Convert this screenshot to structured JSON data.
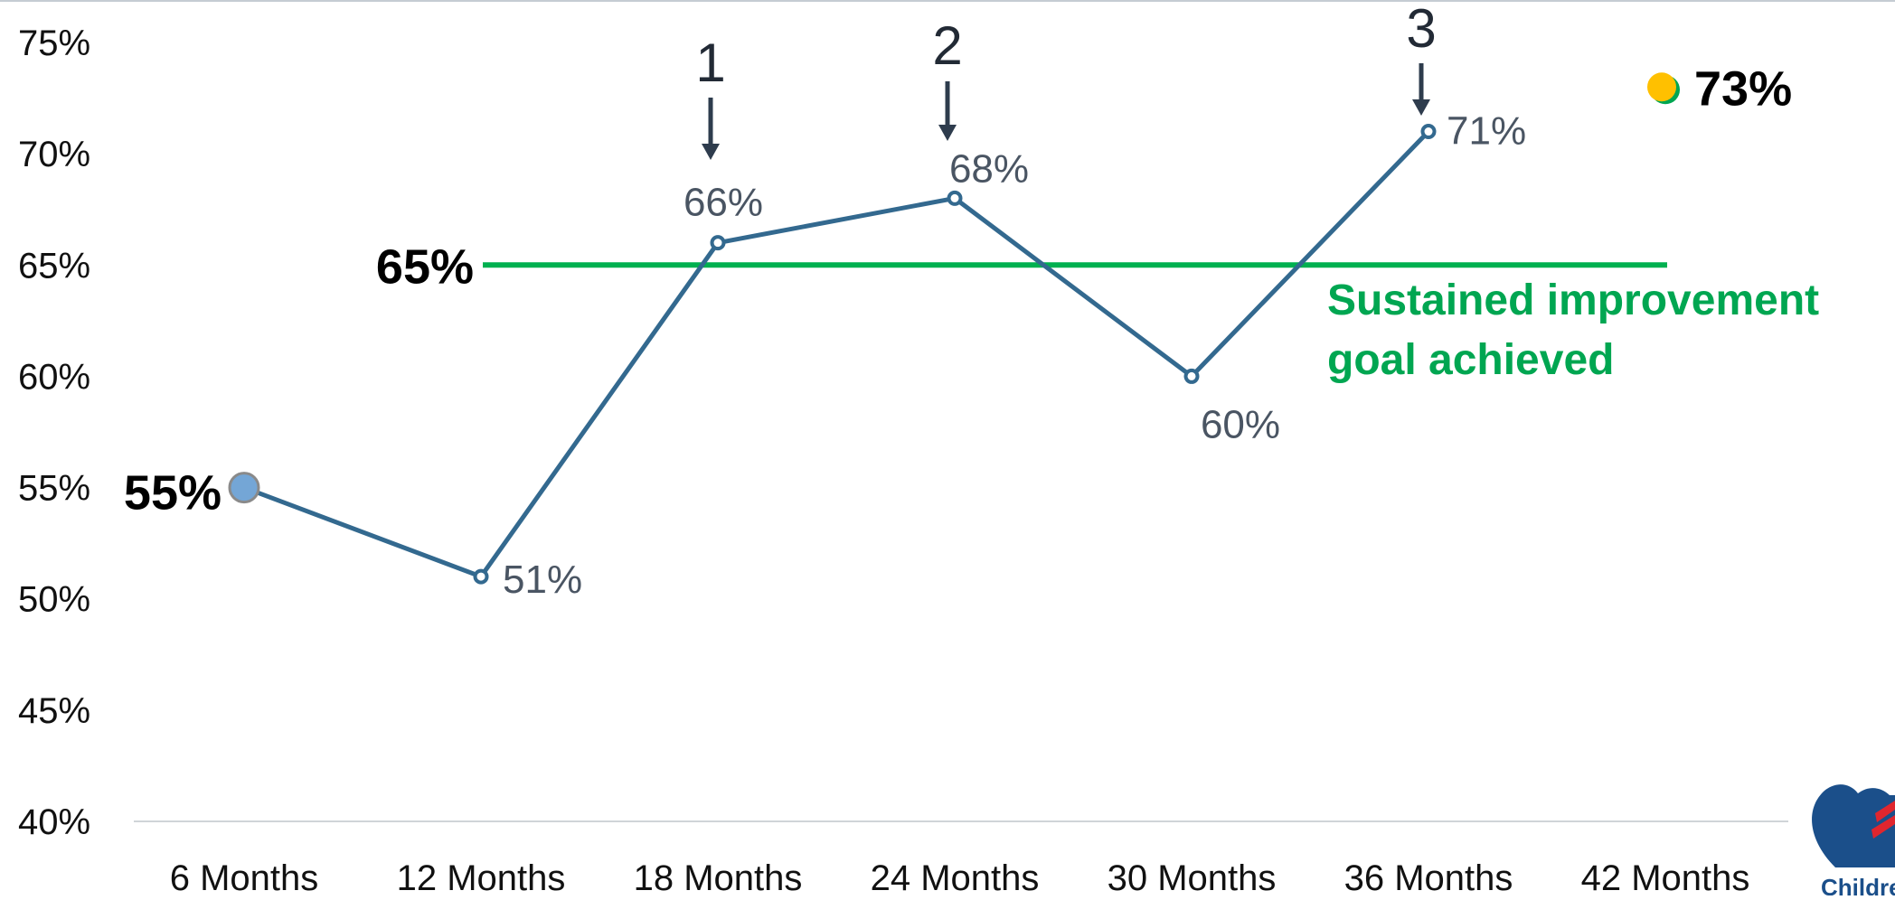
{
  "chart_data": {
    "type": "line",
    "categories": [
      "6 Months",
      "12 Months",
      "18 Months",
      "24 Months",
      "30 Months",
      "36 Months",
      "42 Months"
    ],
    "series": [
      {
        "values": [
          55,
          51,
          66,
          68,
          60,
          71,
          null
        ],
        "labels": [
          "55%",
          "51%",
          "66%",
          "68%",
          "60%",
          "71%",
          ""
        ],
        "color": "#33698f"
      }
    ],
    "target_point": {
      "category": "42 Months",
      "value": 73,
      "label": "73%",
      "color": "#ffc000"
    },
    "goal_line": {
      "value": 65,
      "label": "65%",
      "color": "#00b050",
      "from_category": "12 Months",
      "to_category": "42 Months"
    },
    "goal_text": [
      "Sustained improvement",
      "goal achieved"
    ],
    "annotations": [
      {
        "text": "1",
        "category": "18 Months"
      },
      {
        "text": "2",
        "category": "24 Months"
      },
      {
        "text": "3",
        "category": "36 Months"
      }
    ],
    "ylim": [
      40,
      75
    ],
    "yticks": [
      "40%",
      "45%",
      "50%",
      "55%",
      "60%",
      "65%",
      "70%",
      "75%"
    ],
    "grid": false,
    "logo_text": "Childre"
  }
}
